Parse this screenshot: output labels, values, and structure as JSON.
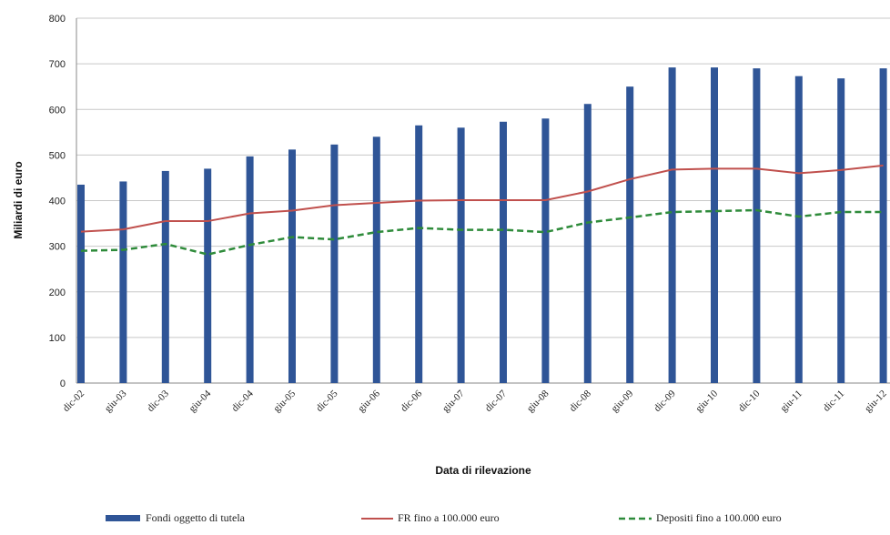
{
  "chart_data": {
    "type": "bar",
    "categories": [
      "dic-02",
      "giu-03",
      "dic-03",
      "giu-04",
      "dic-04",
      "giu-05",
      "dic-05",
      "giu-06",
      "dic-06",
      "giu-07",
      "dic-07",
      "giu-08",
      "dic-08",
      "giu-09",
      "dic-09",
      "giu-10",
      "dic-10",
      "giu-11",
      "dic-11",
      "giu-12"
    ],
    "series": [
      {
        "name": "Fondi oggetto di tutela",
        "kind": "bar",
        "color": "#2f5597",
        "values": [
          435,
          442,
          465,
          470,
          497,
          512,
          523,
          540,
          565,
          560,
          573,
          580,
          612,
          650,
          692,
          692,
          690,
          673,
          668,
          690
        ]
      },
      {
        "name": "FR fino a 100.000 euro",
        "kind": "line",
        "color": "#c0504d",
        "dash": "solid",
        "values": [
          332,
          337,
          355,
          355,
          372,
          378,
          390,
          395,
          400,
          401,
          401,
          401,
          420,
          447,
          468,
          470,
          470,
          460,
          467,
          477
        ]
      },
      {
        "name": "Depositi fino a 100.000 euro",
        "kind": "line",
        "color": "#2e8b3a",
        "dash": "dashed",
        "values": [
          290,
          292,
          305,
          282,
          303,
          320,
          315,
          331,
          340,
          336,
          336,
          331,
          352,
          363,
          375,
          377,
          379,
          365,
          375,
          375
        ]
      }
    ],
    "ylim": [
      0,
      800
    ],
    "yticks": [
      0,
      100,
      200,
      300,
      400,
      500,
      600,
      700,
      800
    ],
    "xlabel": "Data di rilevazione",
    "ylabel": "Miliardi di euro",
    "grid": true,
    "legend_position": "bottom"
  }
}
